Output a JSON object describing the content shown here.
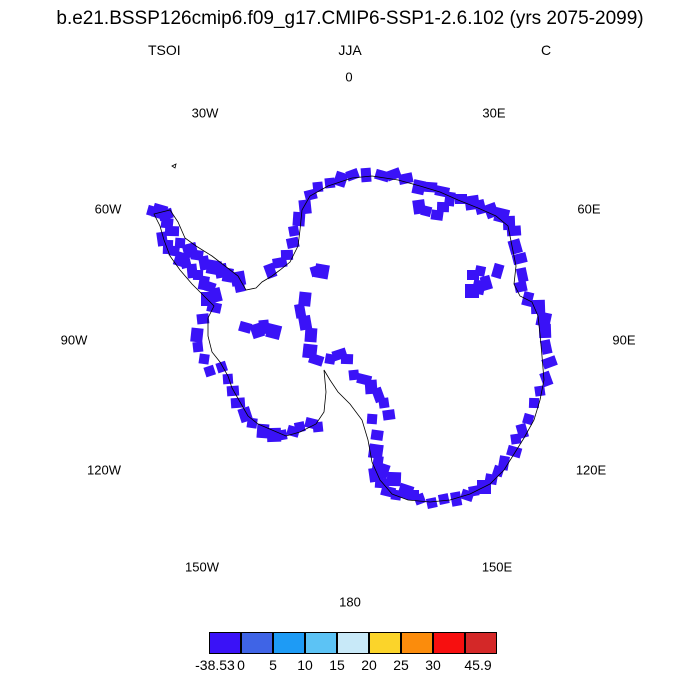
{
  "title": "b.e21.BSSP126cmip6.f09_g17.CMIP6-SSP1-2.6.102 (yrs 2075-2099)",
  "subtitle": {
    "left": "TSOI",
    "center": "JJA",
    "right": "C"
  },
  "longitude_labels": [
    "0",
    "30E",
    "60E",
    "90E",
    "120E",
    "150E",
    "180",
    "150W",
    "120W",
    "90W",
    "60W",
    "30W"
  ],
  "colorbar": {
    "colors": [
      "#3a12f7",
      "#3f64e6",
      "#1e9bf5",
      "#5cc3f5",
      "#c8e9f8",
      "#fbd42a",
      "#fb8c0c",
      "#f70f0f",
      "#d42828"
    ],
    "labels": [
      "-38.53",
      "0",
      "5",
      "10",
      "15",
      "20",
      "25",
      "30",
      "45.9"
    ]
  },
  "field_color": "#3a12f7"
}
